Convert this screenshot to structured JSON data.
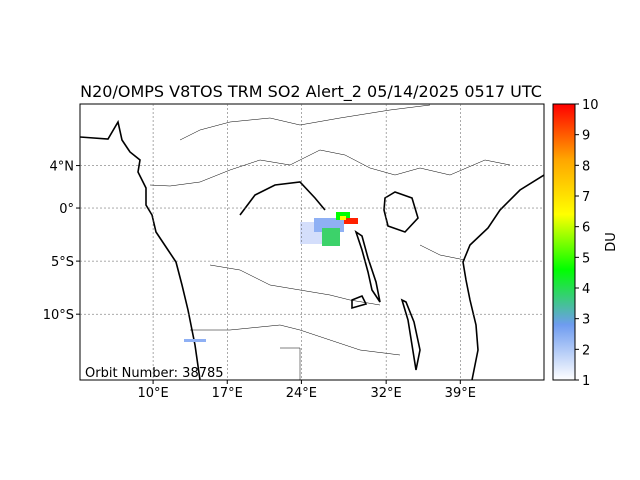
{
  "map": {
    "title": "N20/OMPS V8TOS TRM SO2 Alert_2 05/14/2025 0517 UTC",
    "annotation": "Orbit Number: 38785",
    "xlim": [
      3.1,
      46.9
    ],
    "ylim": [
      -16.2,
      9.8
    ],
    "xticks": [
      {
        "value": 10,
        "label": "10°E"
      },
      {
        "value": 17,
        "label": "17°E"
      },
      {
        "value": 24,
        "label": "24°E"
      },
      {
        "value": 32,
        "label": "32°E"
      },
      {
        "value": 39,
        "label": "39°E"
      }
    ],
    "yticks": [
      {
        "value": 4,
        "label": "4°N"
      },
      {
        "value": 0,
        "label": "0°"
      },
      {
        "value": -5,
        "label": "5°S"
      },
      {
        "value": -10,
        "label": "10°S"
      }
    ],
    "grid": true,
    "colorbar": {
      "label": "DU",
      "lim": [
        1,
        10
      ],
      "ticks": [
        1,
        2,
        3,
        4,
        5,
        6,
        7,
        8,
        9,
        10
      ],
      "colors": [
        "#ffffff",
        "#6f9cf0",
        "#00ff00",
        "#ffff00",
        "#ffa500",
        "#ff0000"
      ]
    }
  }
}
